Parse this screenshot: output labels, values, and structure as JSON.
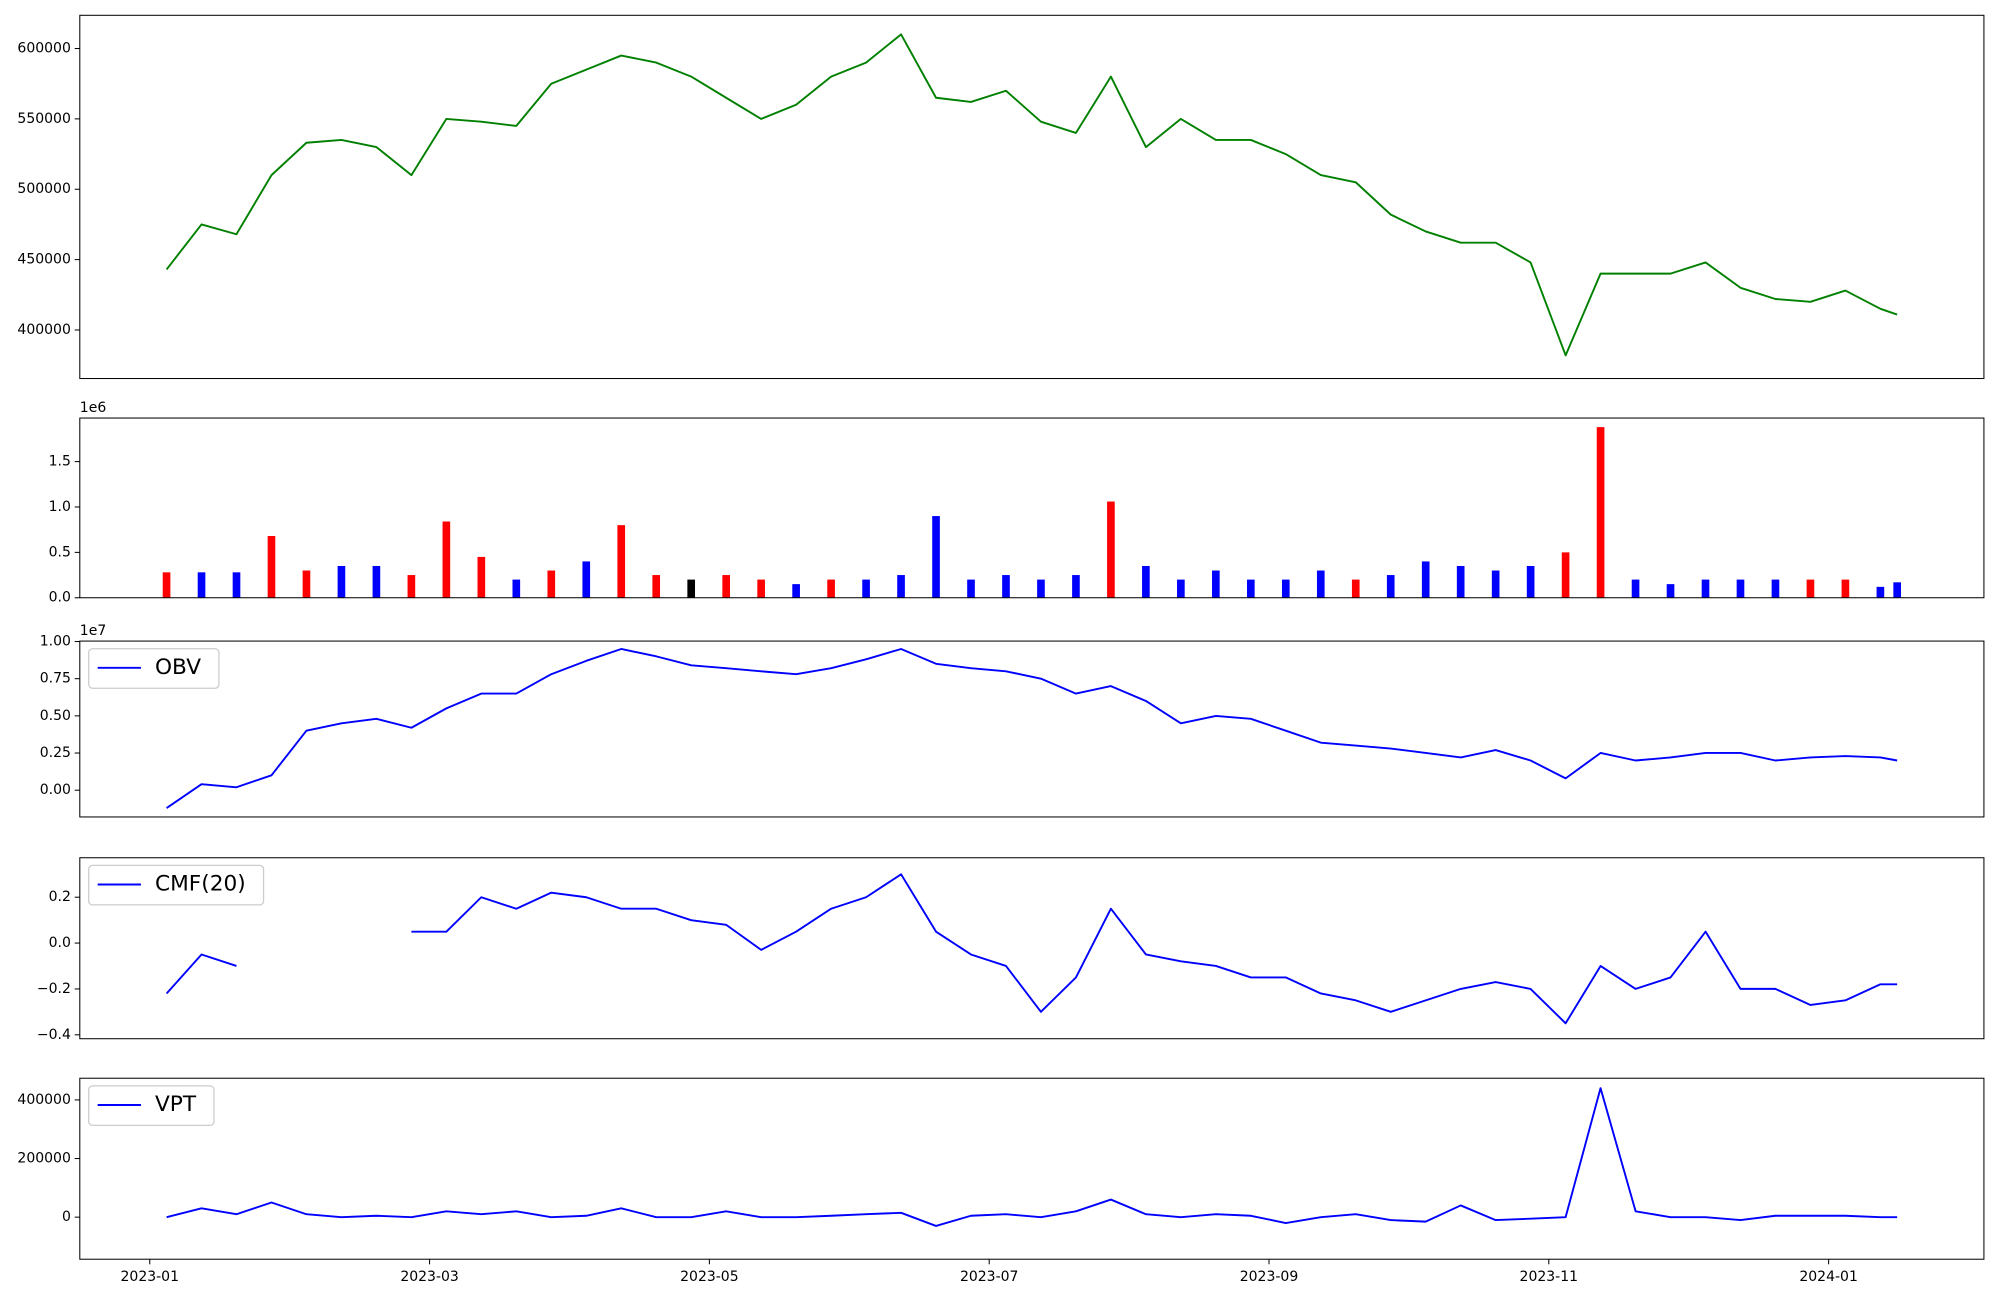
{
  "chart_data": [
    {
      "type": "line",
      "x": [
        0.12,
        0.37,
        0.62,
        0.87,
        1.12,
        1.37,
        1.62,
        1.87,
        2.12,
        2.37,
        2.62,
        2.87,
        3.12,
        3.37,
        3.62,
        3.87,
        4.12,
        4.37,
        4.62,
        4.87,
        5.12,
        5.37,
        5.62,
        5.87,
        6.12,
        6.37,
        6.62,
        6.87,
        7.12,
        7.37,
        7.62,
        7.87,
        8.12,
        8.37,
        8.62,
        8.87,
        9.12,
        9.37,
        9.62,
        9.87,
        10.12,
        10.37,
        10.62,
        10.87,
        11.12,
        11.37,
        11.62,
        11.87,
        12.12,
        12.37,
        12.49
      ],
      "values": [
        443000,
        475000,
        468000,
        510000,
        533000,
        535000,
        530000,
        510000,
        550000,
        548000,
        545000,
        575000,
        585000,
        595000,
        590000,
        580000,
        565000,
        550000,
        560000,
        580000,
        590000,
        610000,
        565000,
        562000,
        570000,
        548000,
        540000,
        580000,
        530000,
        550000,
        535000,
        535000,
        525000,
        510000,
        505000,
        482000,
        470000,
        462000,
        462000,
        448000,
        382000,
        440000,
        440000,
        440000,
        448000,
        430000,
        422000,
        420000,
        428000,
        415000,
        411000
      ],
      "color": "#008000",
      "xlim": [
        -0.5,
        13.11
      ],
      "ylim": [
        365500,
        623600
      ],
      "yticks": [
        400000,
        450000,
        500000,
        550000,
        600000
      ]
    },
    {
      "type": "bar",
      "offset_text": "1e6",
      "x": [
        0.12,
        0.37,
        0.62,
        0.87,
        1.12,
        1.37,
        1.62,
        1.87,
        2.12,
        2.37,
        2.62,
        2.87,
        3.12,
        3.37,
        3.62,
        3.87,
        4.12,
        4.37,
        4.62,
        4.87,
        5.12,
        5.37,
        5.62,
        5.87,
        6.12,
        6.37,
        6.62,
        6.87,
        7.12,
        7.37,
        7.62,
        7.87,
        8.12,
        8.37,
        8.62,
        8.87,
        9.12,
        9.37,
        9.62,
        9.87,
        10.12,
        10.37,
        10.62,
        10.87,
        11.12,
        11.37,
        11.62,
        11.87,
        12.12,
        12.37,
        12.49
      ],
      "values": [
        0.28,
        0.28,
        0.28,
        0.68,
        0.3,
        0.35,
        0.35,
        0.25,
        0.84,
        0.45,
        0.2,
        0.3,
        0.4,
        0.8,
        0.25,
        0.2,
        0.25,
        0.2,
        0.15,
        0.2,
        0.2,
        0.25,
        0.9,
        0.2,
        0.25,
        0.2,
        0.25,
        1.06,
        0.35,
        0.2,
        0.3,
        0.2,
        0.2,
        0.3,
        0.2,
        0.25,
        0.4,
        0.35,
        0.3,
        0.35,
        0.5,
        1.88,
        0.2,
        0.15,
        0.2,
        0.2,
        0.2,
        0.2,
        0.2,
        0.12,
        0.17
      ],
      "colors": [
        "#ff0000",
        "#0000ff",
        "#0000ff",
        "#ff0000",
        "#ff0000",
        "#0000ff",
        "#0000ff",
        "#ff0000",
        "#ff0000",
        "#ff0000",
        "#0000ff",
        "#ff0000",
        "#0000ff",
        "#ff0000",
        "#ff0000",
        "#000000",
        "#ff0000",
        "#ff0000",
        "#0000ff",
        "#ff0000",
        "#0000ff",
        "#0000ff",
        "#0000ff",
        "#0000ff",
        "#0000ff",
        "#0000ff",
        "#0000ff",
        "#ff0000",
        "#0000ff",
        "#0000ff",
        "#0000ff",
        "#0000ff",
        "#0000ff",
        "#0000ff",
        "#ff0000",
        "#0000ff",
        "#0000ff",
        "#0000ff",
        "#0000ff",
        "#0000ff",
        "#ff0000",
        "#ff0000",
        "#0000ff",
        "#0000ff",
        "#0000ff",
        "#0000ff",
        "#0000ff",
        "#ff0000",
        "#ff0000",
        "#0000ff",
        "#0000ff"
      ],
      "xlim": [
        -0.5,
        13.11
      ],
      "ylim": [
        0,
        1.98
      ],
      "yticks": [
        {
          "value": 0,
          "label": "0.0"
        },
        0.5,
        {
          "value": 1,
          "label": "1.0"
        },
        1.5
      ]
    },
    {
      "type": "line",
      "offset_text": "1e7",
      "legend": "upper left",
      "x": [
        0.12,
        0.37,
        0.62,
        0.87,
        1.12,
        1.37,
        1.62,
        1.87,
        2.12,
        2.37,
        2.62,
        2.87,
        3.12,
        3.37,
        3.62,
        3.87,
        4.12,
        4.37,
        4.62,
        4.87,
        5.12,
        5.37,
        5.62,
        5.87,
        6.12,
        6.37,
        6.62,
        6.87,
        7.12,
        7.37,
        7.62,
        7.87,
        8.12,
        8.37,
        8.62,
        8.87,
        9.12,
        9.37,
        9.62,
        9.87,
        10.12,
        10.37,
        10.62,
        10.87,
        11.12,
        11.37,
        11.62,
        11.87,
        12.12,
        12.37,
        12.49
      ],
      "series": [
        {
          "name": "OBV",
          "color": "#0000ff",
          "values": [
            -0.12,
            0.04,
            0.02,
            0.1,
            0.4,
            0.45,
            0.48,
            0.42,
            0.55,
            0.65,
            0.65,
            0.78,
            0.87,
            0.95,
            0.9,
            0.84,
            0.82,
            0.8,
            0.78,
            0.82,
            0.88,
            0.95,
            0.85,
            0.82,
            0.8,
            0.75,
            0.65,
            0.7,
            0.6,
            0.45,
            0.5,
            0.48,
            0.4,
            0.32,
            0.3,
            0.28,
            0.25,
            0.22,
            0.27,
            0.2,
            0.08,
            0.25,
            0.2,
            0.22,
            0.25,
            0.25,
            0.2,
            0.22,
            0.23,
            0.22,
            0.2
          ]
        }
      ],
      "xlim": [
        -0.5,
        13.11
      ],
      "ylim": [
        -0.18,
        1.003
      ],
      "yticks": [
        {
          "value": 0,
          "label": "0.00"
        },
        0.25,
        {
          "value": 0.5,
          "label": "0.50"
        },
        0.75,
        {
          "value": 1,
          "label": "1.00"
        }
      ]
    },
    {
      "type": "line",
      "legend": "upper left",
      "x": [
        0.12,
        0.37,
        0.62,
        0.87,
        1.12,
        1.37,
        1.62,
        1.87,
        2.12,
        2.37,
        2.62,
        2.87,
        3.12,
        3.37,
        3.62,
        3.87,
        4.12,
        4.37,
        4.62,
        4.87,
        5.12,
        5.37,
        5.62,
        5.87,
        6.12,
        6.37,
        6.62,
        6.87,
        7.12,
        7.37,
        7.62,
        7.87,
        8.12,
        8.37,
        8.62,
        8.87,
        9.12,
        9.37,
        9.62,
        9.87,
        10.12,
        10.37,
        10.62,
        10.87,
        11.12,
        11.37,
        11.62,
        11.87,
        12.12,
        12.37,
        12.49
      ],
      "series": [
        {
          "name": "CMF(20)",
          "color": "#0000ff",
          "values": [
            -0.22,
            -0.05,
            -0.1,
            null,
            null,
            null,
            null,
            0.05,
            0.05,
            0.2,
            0.15,
            0.22,
            0.2,
            0.15,
            0.15,
            0.1,
            0.08,
            -0.03,
            0.05,
            0.15,
            0.2,
            0.3,
            0.05,
            -0.05,
            -0.1,
            -0.3,
            -0.15,
            0.15,
            -0.05,
            -0.08,
            -0.1,
            -0.15,
            -0.15,
            -0.22,
            -0.25,
            -0.3,
            -0.25,
            -0.2,
            -0.17,
            -0.2,
            -0.35,
            -0.1,
            -0.2,
            -0.15,
            0.05,
            -0.2,
            -0.2,
            -0.27,
            -0.25,
            -0.18,
            -0.18
          ]
        }
      ],
      "xlim": [
        -0.5,
        13.11
      ],
      "ylim": [
        -0.417,
        0.372
      ],
      "yticks": [
        {
          "value": -0.4,
          "label": "−0.4"
        },
        {
          "value": -0.2,
          "label": "−0.2"
        },
        {
          "value": 0,
          "label": "0.0"
        },
        0.2
      ]
    },
    {
      "type": "line",
      "legend": "upper left",
      "x": [
        0.12,
        0.37,
        0.62,
        0.87,
        1.12,
        1.37,
        1.62,
        1.87,
        2.12,
        2.37,
        2.62,
        2.87,
        3.12,
        3.37,
        3.62,
        3.87,
        4.12,
        4.37,
        4.62,
        4.87,
        5.12,
        5.37,
        5.62,
        5.87,
        6.12,
        6.37,
        6.62,
        6.87,
        7.12,
        7.37,
        7.62,
        7.87,
        8.12,
        8.37,
        8.62,
        8.87,
        9.12,
        9.37,
        9.62,
        9.87,
        10.12,
        10.37,
        10.62,
        10.87,
        11.12,
        11.37,
        11.62,
        11.87,
        12.12,
        12.37,
        12.49
      ],
      "series": [
        {
          "name": "VPT",
          "color": "#0000ff",
          "values": [
            0,
            30000,
            10000,
            50000,
            10000,
            0,
            5000,
            0,
            20000,
            10000,
            20000,
            0,
            5000,
            30000,
            0,
            0,
            20000,
            0,
            0,
            5000,
            10000,
            15000,
            -30000,
            5000,
            10000,
            0,
            20000,
            60000,
            10000,
            0,
            10000,
            5000,
            -20000,
            0,
            10000,
            -10000,
            -15000,
            40000,
            -10000,
            -5000,
            0,
            440000,
            20000,
            0,
            0,
            -10000,
            5000,
            5000,
            5000,
            0,
            0
          ]
        }
      ],
      "xlim": [
        -0.5,
        13.11
      ],
      "ylim": [
        -143500,
        474000
      ],
      "yticks": [
        0,
        200000,
        400000
      ],
      "xticks": [
        {
          "value": 0,
          "label": "2023-01"
        },
        {
          "value": 2,
          "label": "2023-03"
        },
        {
          "value": 4,
          "label": "2023-05"
        },
        {
          "value": 6,
          "label": "2023-07"
        },
        {
          "value": 8,
          "label": "2023-09"
        },
        {
          "value": 10,
          "label": "2023-11"
        },
        {
          "value": 12,
          "label": "2024-01"
        }
      ]
    }
  ]
}
